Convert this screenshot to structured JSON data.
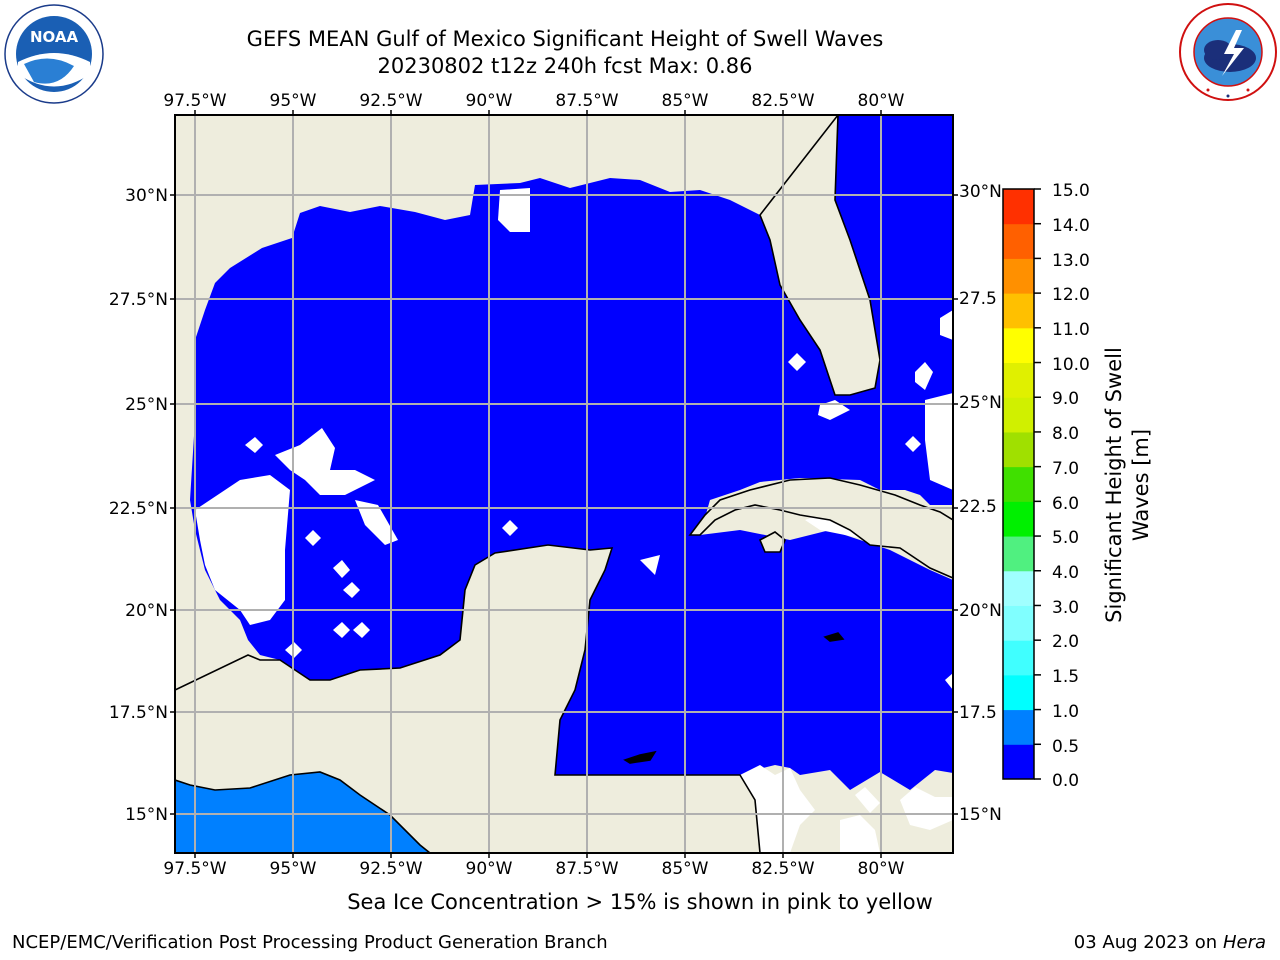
{
  "header": {
    "title_line1": "GEFS MEAN Gulf of Mexico Significant Height of Swell Waves",
    "title_line2": "20230802 t12z 240h fcst   Max: 0.86"
  },
  "logos": {
    "noaa": "NOAA",
    "noaa_ring": "NATIONAL OCEANIC AND ATMOSPHERIC ADMINISTRATION · U.S. DEPARTMENT OF COMMERCE",
    "nws_ring": "NATIONAL WEATHER SERVICE"
  },
  "map": {
    "lon_labels": [
      "97.5°W",
      "95°W",
      "92.5°W",
      "90°W",
      "87.5°W",
      "85°W",
      "82.5°W",
      "80°W"
    ],
    "lat_labels_left": [
      "30°N",
      "27.5°N",
      "25°N",
      "22.5°N",
      "20°N",
      "17.5°N",
      "15°N"
    ],
    "lat_labels_right": [
      "30°N",
      "27.5",
      "25°N",
      "22.5",
      "20°N",
      "17.5",
      "15°N"
    ],
    "colors": {
      "land": "#eeeddd",
      "ocean_low": "#0000ff",
      "ocean_mid": "#0080ff",
      "gridline": "#b0b0b0"
    }
  },
  "colorbar": {
    "title": "Significant Height of Swell Waves [m]",
    "labels": [
      "15.0",
      "14.0",
      "13.0",
      "12.0",
      "11.0",
      "10.0",
      "9.0",
      "8.0",
      "7.0",
      "6.0",
      "5.0",
      "4.0",
      "3.0",
      "2.0",
      "1.5",
      "1.0",
      "0.5",
      "0.0"
    ],
    "colors": [
      "#0000ff",
      "#0080ff",
      "#00ffff",
      "#40ffff",
      "#80ffff",
      "#a0ffff",
      "#50f080",
      "#00f000",
      "#40e000",
      "#a0e000",
      "#d0f000",
      "#e0f000",
      "#ffff00",
      "#ffc000",
      "#ff9000",
      "#ff6000",
      "#ff3000"
    ]
  },
  "footer": {
    "ice_note": "Sea Ice Concentration > 15% is shown in pink to yellow",
    "left": "NCEP/EMC/Verification Post Processing Product Generation Branch",
    "right_date": "03 Aug 2023 on",
    "right_host": "Hera"
  }
}
